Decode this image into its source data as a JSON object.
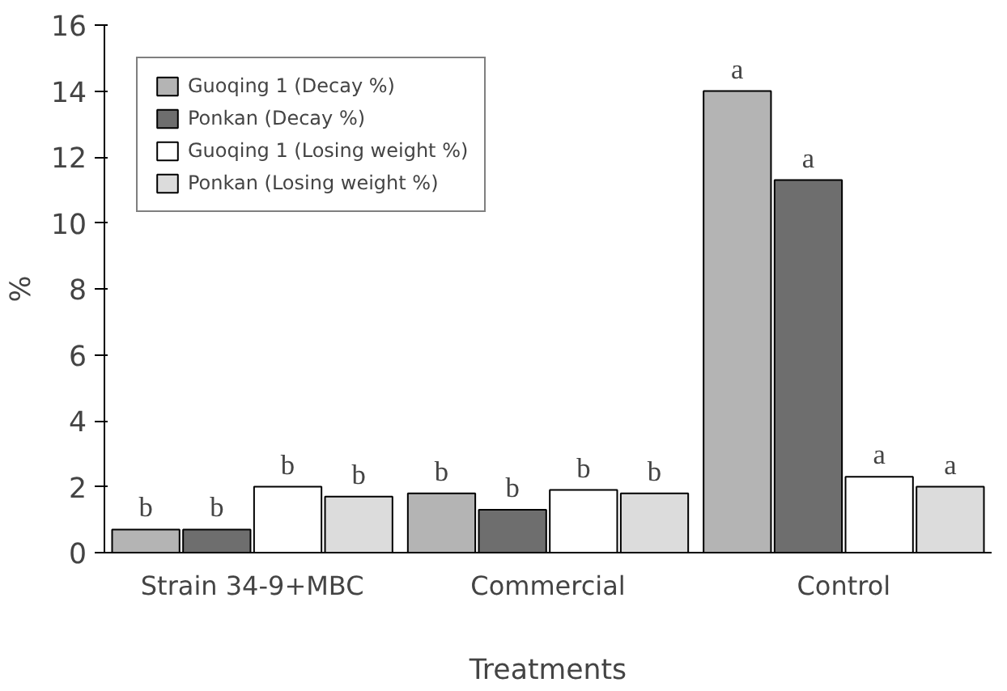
{
  "chart_data": {
    "type": "bar",
    "xlabel": "Treatments",
    "ylabel": "%",
    "categories": [
      "Strain 34-9+MBC",
      "Commercial",
      "Control"
    ],
    "series": [
      {
        "name": "Guoqing 1 (Decay %)",
        "color": "#b4b4b4",
        "values": [
          0.7,
          1.8,
          14.0
        ],
        "value_labels": [
          "b",
          "b",
          "a"
        ]
      },
      {
        "name": "Ponkan (Decay %)",
        "color": "#6e6e6e",
        "values": [
          0.7,
          1.3,
          11.3
        ],
        "value_labels": [
          "b",
          "b",
          "a"
        ]
      },
      {
        "name": "Guoqing 1 (Losing weight %)",
        "color": "#ffffff",
        "values": [
          2.0,
          1.9,
          2.3
        ],
        "value_labels": [
          "b",
          "b",
          "a"
        ]
      },
      {
        "name": "Ponkan (Losing weight %)",
        "color": "#dcdcdc",
        "values": [
          1.7,
          1.8,
          2.0
        ],
        "value_labels": [
          "b",
          "b",
          "a"
        ]
      }
    ],
    "ylim": [
      0,
      16
    ],
    "yticks": [
      0,
      2,
      4,
      6,
      8,
      10,
      12,
      14,
      16
    ],
    "grid": false,
    "legend": "top left"
  }
}
